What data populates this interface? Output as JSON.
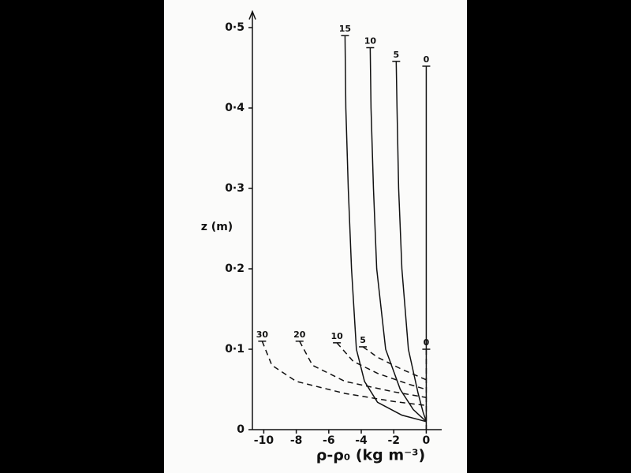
{
  "chart_data": {
    "type": "line",
    "y_label": "z (m)",
    "x_label": "ρ-ρ₀ (kg m⁻³)",
    "xlim": [
      -10.7,
      0.95
    ],
    "ylim": [
      0,
      0.52
    ],
    "xticks": [
      -10,
      -8,
      -6,
      -4,
      -2,
      0
    ],
    "yticks": [
      0,
      {
        "value": 0.1,
        "label": "0·1"
      },
      {
        "value": 0.2,
        "label": "0·2"
      },
      {
        "value": 0.3,
        "label": "0·3"
      },
      {
        "value": 0.4,
        "label": "0·4"
      },
      {
        "value": 0.5,
        "label": "0·5"
      }
    ],
    "series": [
      {
        "name": "15",
        "color": "#111111",
        "style": "solid",
        "x": [
          -5.0,
          -4.95,
          -4.8,
          -4.6,
          -4.3,
          -3.8,
          -3.0,
          -1.5,
          0
        ],
        "values": [
          0.49,
          0.4,
          0.3,
          0.2,
          0.1,
          0.06,
          0.034,
          0.018,
          0.01
        ]
      },
      {
        "name": "10",
        "color": "#111111",
        "style": "solid",
        "x": [
          -3.45,
          -3.4,
          -3.25,
          -3.05,
          -2.5,
          -1.6,
          -0.8,
          0
        ],
        "values": [
          0.475,
          0.4,
          0.3,
          0.2,
          0.1,
          0.05,
          0.025,
          0.01
        ]
      },
      {
        "name": "5",
        "color": "#111111",
        "style": "solid",
        "x": [
          -1.85,
          -1.8,
          -1.7,
          -1.5,
          -1.1,
          -0.5,
          -0.2,
          0
        ],
        "values": [
          0.458,
          0.4,
          0.3,
          0.2,
          0.1,
          0.045,
          0.022,
          0.01
        ]
      },
      {
        "name": "0",
        "color": "#111111",
        "style": "solid",
        "x": [
          0,
          0
        ],
        "values": [
          0.452,
          0
        ]
      },
      {
        "name": "30",
        "color": "#111111",
        "style": "dashed",
        "x": [
          -10.1,
          -9.5,
          -8.0,
          -5.0,
          -2.0,
          0
        ],
        "values": [
          0.11,
          0.08,
          0.06,
          0.045,
          0.035,
          0.03
        ]
      },
      {
        "name": "20",
        "color": "#111111",
        "style": "dashed",
        "x": [
          -7.8,
          -7.0,
          -5.0,
          -2.0,
          0
        ],
        "values": [
          0.11,
          0.08,
          0.06,
          0.047,
          0.04
        ]
      },
      {
        "name": "10",
        "color": "#111111",
        "style": "dashed",
        "x": [
          -5.5,
          -4.5,
          -3.0,
          -1.0,
          0
        ],
        "values": [
          0.108,
          0.085,
          0.07,
          0.056,
          0.05
        ]
      },
      {
        "name": "5",
        "color": "#111111",
        "style": "dashed",
        "x": [
          -3.9,
          -3.0,
          -1.5,
          0
        ],
        "values": [
          0.103,
          0.09,
          0.075,
          0.062
        ]
      },
      {
        "name": "0",
        "color": "#111111",
        "style": "dashed",
        "x": [
          0,
          0
        ],
        "values": [
          0.1,
          0
        ]
      }
    ]
  }
}
